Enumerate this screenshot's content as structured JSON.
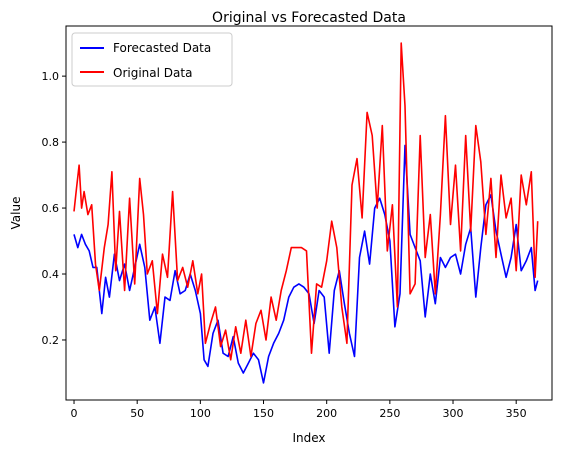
{
  "chart_data": {
    "type": "line",
    "title": "Original vs Forecasted Data",
    "xlabel": "Index",
    "ylabel": "Value",
    "xlim": [
      -6.35,
      378.35
    ],
    "ylim": [
      0.018,
      1.152
    ],
    "xticks": [
      0,
      50,
      100,
      150,
      200,
      250,
      300,
      350
    ],
    "yticks": [
      0.2,
      0.4,
      0.6,
      0.8,
      1.0
    ],
    "ytick_labels": [
      "0.2",
      "0.4",
      "0.6",
      "0.8",
      "1.0"
    ],
    "legend_position": "upper-left",
    "grid": false,
    "series": [
      {
        "name": "Forecasted Data",
        "color": "#0000ff",
        "x": [
          0,
          3,
          6,
          9,
          12,
          15,
          18,
          22,
          25,
          28,
          32,
          36,
          40,
          44,
          48,
          52,
          56,
          60,
          64,
          68,
          72,
          76,
          80,
          84,
          88,
          92,
          96,
          100,
          103,
          106,
          110,
          114,
          118,
          122,
          126,
          130,
          134,
          138,
          142,
          146,
          150,
          154,
          158,
          162,
          166,
          170,
          174,
          178,
          182,
          186,
          190,
          194,
          198,
          202,
          206,
          210,
          214,
          218,
          222,
          226,
          230,
          234,
          238,
          242,
          246,
          250,
          254,
          258,
          262,
          266,
          270,
          274,
          278,
          282,
          286,
          290,
          294,
          298,
          302,
          306,
          310,
          314,
          318,
          322,
          326,
          330,
          334,
          338,
          342,
          346,
          350,
          354,
          358,
          362,
          365,
          367
        ],
        "y": [
          0.52,
          0.48,
          0.52,
          0.49,
          0.47,
          0.42,
          0.42,
          0.28,
          0.39,
          0.33,
          0.46,
          0.38,
          0.43,
          0.35,
          0.42,
          0.49,
          0.42,
          0.26,
          0.3,
          0.19,
          0.33,
          0.32,
          0.41,
          0.34,
          0.35,
          0.4,
          0.35,
          0.28,
          0.14,
          0.12,
          0.22,
          0.26,
          0.16,
          0.15,
          0.21,
          0.13,
          0.1,
          0.13,
          0.16,
          0.14,
          0.07,
          0.15,
          0.19,
          0.22,
          0.26,
          0.33,
          0.36,
          0.37,
          0.36,
          0.34,
          0.25,
          0.35,
          0.33,
          0.16,
          0.35,
          0.41,
          0.31,
          0.22,
          0.15,
          0.45,
          0.53,
          0.43,
          0.6,
          0.63,
          0.58,
          0.5,
          0.24,
          0.34,
          0.79,
          0.52,
          0.48,
          0.44,
          0.27,
          0.4,
          0.31,
          0.45,
          0.42,
          0.45,
          0.46,
          0.4,
          0.49,
          0.54,
          0.33,
          0.48,
          0.61,
          0.64,
          0.53,
          0.46,
          0.39,
          0.45,
          0.55,
          0.41,
          0.44,
          0.48,
          0.35,
          0.38
        ]
      },
      {
        "name": "Original Data",
        "color": "#ff0000",
        "x": [
          0,
          2,
          4,
          6,
          8,
          11,
          14,
          17,
          20,
          24,
          27,
          30,
          33,
          36,
          40,
          44,
          48,
          52,
          55,
          58,
          62,
          66,
          70,
          74,
          78,
          82,
          86,
          90,
          94,
          98,
          101,
          104,
          108,
          112,
          116,
          120,
          124,
          128,
          132,
          136,
          140,
          144,
          148,
          152,
          156,
          160,
          164,
          168,
          172,
          176,
          180,
          184,
          188,
          192,
          196,
          200,
          204,
          208,
          212,
          216,
          220,
          224,
          228,
          232,
          236,
          240,
          244,
          248,
          252,
          256,
          259,
          262,
          266,
          270,
          274,
          278,
          282,
          286,
          290,
          294,
          298,
          302,
          306,
          310,
          314,
          318,
          322,
          326,
          330,
          334,
          338,
          342,
          346,
          350,
          354,
          358,
          362,
          365,
          367
        ],
        "y": [
          0.59,
          0.66,
          0.73,
          0.6,
          0.65,
          0.58,
          0.61,
          0.43,
          0.35,
          0.48,
          0.55,
          0.71,
          0.41,
          0.59,
          0.35,
          0.63,
          0.37,
          0.69,
          0.58,
          0.4,
          0.44,
          0.28,
          0.46,
          0.39,
          0.65,
          0.38,
          0.42,
          0.36,
          0.44,
          0.34,
          0.4,
          0.19,
          0.25,
          0.3,
          0.18,
          0.23,
          0.14,
          0.24,
          0.16,
          0.26,
          0.15,
          0.25,
          0.29,
          0.2,
          0.33,
          0.26,
          0.35,
          0.41,
          0.48,
          0.48,
          0.48,
          0.47,
          0.16,
          0.37,
          0.36,
          0.44,
          0.56,
          0.48,
          0.3,
          0.19,
          0.67,
          0.75,
          0.57,
          0.89,
          0.82,
          0.6,
          0.85,
          0.47,
          0.61,
          0.3,
          1.1,
          0.91,
          0.34,
          0.37,
          0.82,
          0.45,
          0.58,
          0.34,
          0.58,
          0.88,
          0.55,
          0.73,
          0.47,
          0.82,
          0.53,
          0.85,
          0.74,
          0.52,
          0.69,
          0.45,
          0.7,
          0.57,
          0.63,
          0.41,
          0.7,
          0.61,
          0.71,
          0.39,
          0.56
        ]
      }
    ]
  }
}
